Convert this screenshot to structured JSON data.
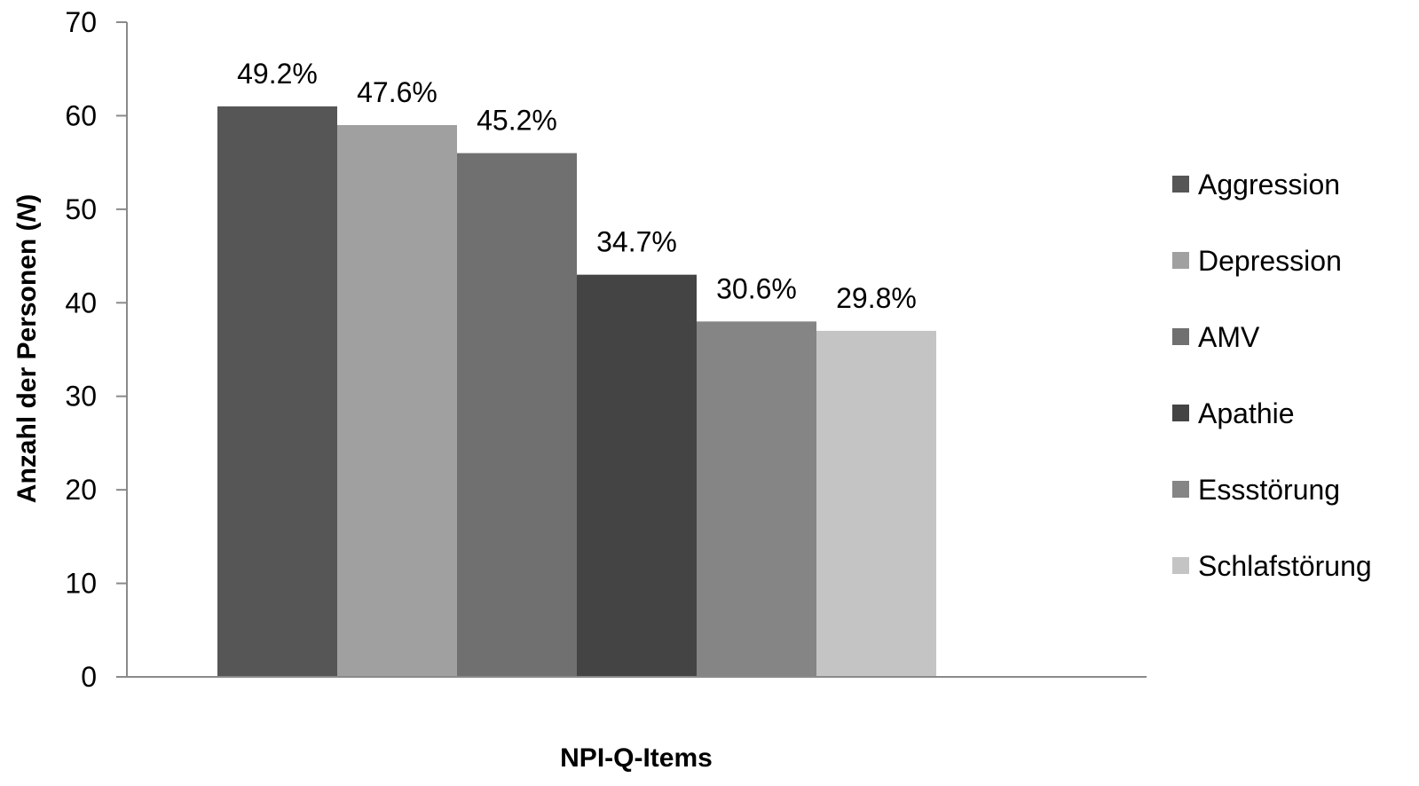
{
  "chart_data": {
    "type": "bar",
    "title": "",
    "xlabel": "NPI-Q-Items",
    "ylabel": {
      "text": "Anzahl der Personen (",
      "italic": "N",
      "close": ")"
    },
    "ylim": [
      0,
      70
    ],
    "yticks": [
      0,
      10,
      20,
      30,
      40,
      50,
      60,
      70
    ],
    "grid": false,
    "legend_position": "right",
    "series": [
      {
        "name": "Aggression",
        "value": 61,
        "label": "49.2%",
        "color": "#565656"
      },
      {
        "name": "Depression",
        "value": 59,
        "label": "47.6%",
        "color": "#a0a0a0"
      },
      {
        "name": "AMV",
        "value": 56,
        "label": "45.2%",
        "color": "#707070"
      },
      {
        "name": "Apathie",
        "value": 43,
        "label": "34.7%",
        "color": "#444444"
      },
      {
        "name": "Essstörung",
        "value": 38,
        "label": "30.6%",
        "color": "#858585"
      },
      {
        "name": "Schlafstörung",
        "value": 37,
        "label": "29.8%",
        "color": "#c4c4c4"
      }
    ]
  }
}
